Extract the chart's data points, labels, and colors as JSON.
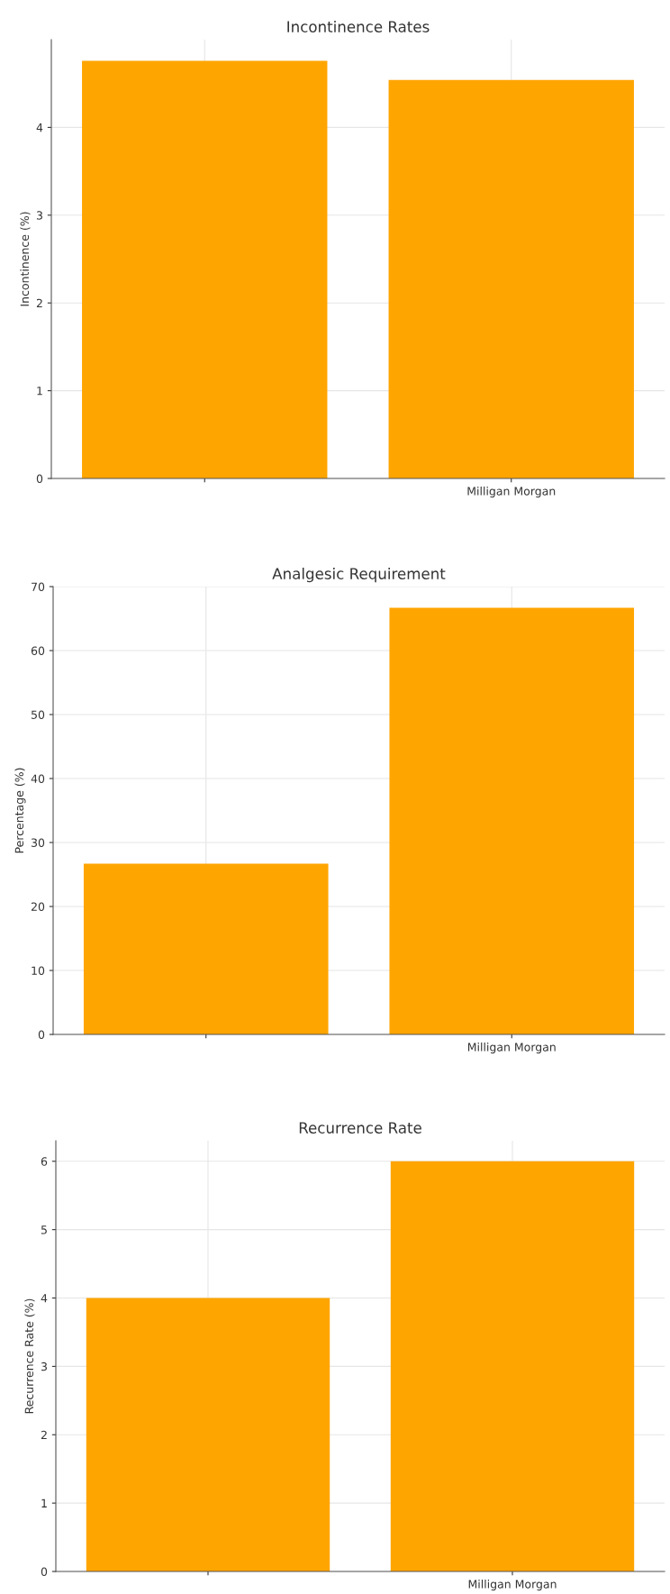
{
  "chart_data": [
    {
      "type": "bar",
      "title": "Incontinence Rates",
      "ylabel": "Incontinence (%)",
      "categories": [
        null,
        "Milligan Morgan"
      ],
      "values": [
        4.76,
        4.54
      ],
      "color": "#ffa500",
      "ylim": [
        0,
        5.0
      ],
      "yticks": [
        0,
        1,
        2,
        3,
        4
      ],
      "grid": true
    },
    {
      "type": "bar",
      "title": "Analgesic Requirement",
      "ylabel": "Percentage (%)",
      "categories": [
        null,
        "Milligan Morgan"
      ],
      "values": [
        26.7,
        66.7
      ],
      "color": "#ffa500",
      "ylim": [
        0,
        70
      ],
      "yticks": [
        0,
        10,
        20,
        30,
        40,
        50,
        60,
        70
      ],
      "grid": true
    },
    {
      "type": "bar",
      "title": "Recurrence Rate",
      "ylabel": "Recurrence Rate (%)",
      "categories": [
        null,
        "Milligan Morgan"
      ],
      "values": [
        4,
        6
      ],
      "color": "#ffa500",
      "ylim": [
        0,
        6.3
      ],
      "yticks": [
        0,
        1,
        2,
        3,
        4,
        5,
        6
      ],
      "grid": true
    }
  ]
}
